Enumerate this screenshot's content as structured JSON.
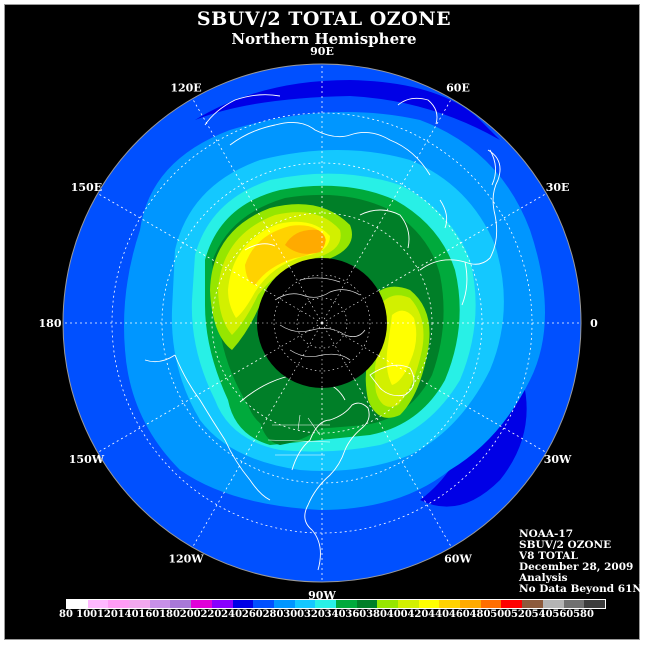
{
  "title": "SBUV/2 TOTAL OZONE",
  "subtitle": "Northern Hemisphere",
  "longitude_labels": [
    {
      "text": "90E",
      "angle": -90
    },
    {
      "text": "60E",
      "angle": -60
    },
    {
      "text": "30E",
      "angle": -30
    },
    {
      "text": "0",
      "angle": 0
    },
    {
      "text": "30W",
      "angle": 30
    },
    {
      "text": "60W",
      "angle": 60
    },
    {
      "text": "90W",
      "angle": 90
    },
    {
      "text": "120W",
      "angle": 120
    },
    {
      "text": "150W",
      "angle": 150
    },
    {
      "text": "180",
      "angle": 180
    },
    {
      "text": "150E",
      "angle": 210
    },
    {
      "text": "120E",
      "angle": 240
    }
  ],
  "info": {
    "satellite": "NOAA-17",
    "instrument": "SBUV/2 OZONE",
    "product": "V8 TOTAL",
    "date": "December 28, 2009",
    "type": "Analysis",
    "note": "No Data Beyond 61N"
  },
  "colorbar": {
    "labels": [
      "80",
      "100",
      "120",
      "140",
      "160",
      "180",
      "200",
      "220",
      "240",
      "260",
      "280",
      "300",
      "320",
      "340",
      "360",
      "380",
      "400",
      "420",
      "440",
      "460",
      "480",
      "500",
      "520",
      "540",
      "560",
      "580"
    ],
    "colors": [
      "#ffffff",
      "#ffb8ff",
      "#ff9cf5",
      "#f2a8ee",
      "#c890e8",
      "#a878d8",
      "#e000d8",
      "#8800ff",
      "#0000e6",
      "#0050ff",
      "#0096ff",
      "#14c8ff",
      "#28f0e6",
      "#00aa3c",
      "#007f28",
      "#96e600",
      "#d2f000",
      "#ffff00",
      "#ffd200",
      "#ffaa00",
      "#ff6e00",
      "#ff0000",
      "#8c5a3c",
      "#b4b4b4",
      "#707070",
      "#3c3c3c"
    ]
  },
  "colors": {
    "background": "#000000",
    "ocean_band": "#0050ff"
  }
}
